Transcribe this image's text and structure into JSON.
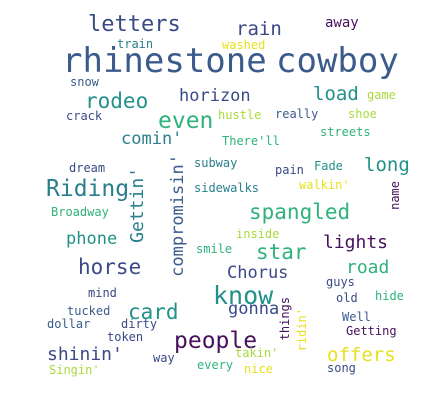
{
  "colors": {
    "background": "#ffffff",
    "dark_purple": "#46105c",
    "navy": "#3a4a86",
    "slate_blue": "#3b5b8c",
    "teal": "#2a7f8e",
    "teal_green": "#22918a",
    "green": "#2fb27c",
    "light_green": "#6fcd5b",
    "yellow_green": "#a8da3a",
    "yellow": "#e6e11c"
  },
  "words": {
    "rhinestone": "rhinestone",
    "cowboy": "cowboy",
    "letters": "letters",
    "rain": "rain",
    "away": "away",
    "train": "train",
    "washed": "washed",
    "rodeo": "rodeo",
    "snow": "snow",
    "horizon": "horizon",
    "load": "load",
    "game": "game",
    "crack": "crack",
    "even": "even",
    "hustle": "hustle",
    "really": "really",
    "shoe": "shoe",
    "comin": "comin'",
    "therell": "There'll",
    "streets": "streets",
    "dream": "dream",
    "subway": "subway",
    "pain": "pain",
    "fade": "Fade",
    "long": "long",
    "riding": "Riding",
    "gettin": "Gettin'",
    "sidewalks": "sidewalks",
    "walkin": "walkin'",
    "name": "name",
    "spangled": "spangled",
    "broadway": "Broadway",
    "compromisin": "compromisin'",
    "inside": "inside",
    "phone": "phone",
    "star": "star",
    "lights": "lights",
    "smile": "smile",
    "horse": "horse",
    "road": "road",
    "chorus": "Chorus",
    "guys": "guys",
    "know": "know",
    "mind": "mind",
    "card": "card",
    "things": "things",
    "old": "old",
    "hide": "hide",
    "gonna": "gonna",
    "tucked": "tucked",
    "ridin": "ridin'",
    "well": "Well",
    "dollar": "dollar",
    "dirty": "dirty",
    "getting": "Getting",
    "people": "people",
    "token": "token",
    "shinin": "shinin'",
    "offers": "offers",
    "way": "way",
    "takin": "takin'",
    "singin": "Singin'",
    "every": "every",
    "nice": "nice",
    "song": "song"
  }
}
